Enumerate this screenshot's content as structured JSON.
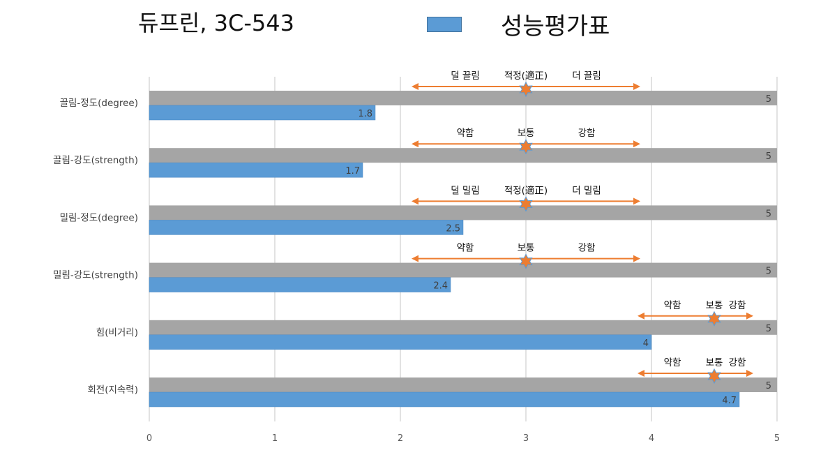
{
  "title": "듀프린, 3C-543",
  "legend": {
    "label": "성능평가표",
    "color": "#5b9bd5"
  },
  "colors": {
    "bar": "#5b9bd5",
    "max": "#a5a5a5",
    "arrow": "#ed7d31",
    "star": "#ed7d31",
    "star_stroke": "#5b9bd5",
    "grid": "#d9d9d9"
  },
  "chart_data": {
    "type": "bar",
    "orientation": "horizontal",
    "xlim": [
      0,
      5
    ],
    "xticks": [
      "0",
      "1",
      "2",
      "3",
      "4",
      "5"
    ],
    "grid": true,
    "categories": [
      "끌림-정도(degree)",
      "끌림-강도(strength)",
      "밀림-정도(degree)",
      "밀림-강도(strength)",
      "힘(비거리)",
      "회전(지속력)"
    ],
    "series": [
      {
        "values": [
          5,
          5,
          5,
          5,
          5,
          5
        ]
      },
      {
        "values": [
          1.8,
          1.7,
          2.5,
          2.4,
          4,
          4.7
        ]
      }
    ],
    "data_labels": {
      "max": [
        "5",
        "5",
        "5",
        "5",
        "5",
        "5"
      ],
      "value": [
        "1.8",
        "1.7",
        "2.5",
        "2.4",
        "4",
        "4.7"
      ]
    },
    "scales": [
      {
        "left": "덜 끌림",
        "mid": "적정(適正)",
        "right": "더 끌림",
        "from": 2.1,
        "to": 3.9,
        "marker": 3
      },
      {
        "left": "약함",
        "mid": "보통",
        "right": "강함",
        "from": 2.1,
        "to": 3.9,
        "marker": 3
      },
      {
        "left": "덜 밀림",
        "mid": "적정(適正)",
        "right": "더 밀림",
        "from": 2.1,
        "to": 3.9,
        "marker": 3
      },
      {
        "left": "약함",
        "mid": "보통",
        "right": "강함",
        "from": 2.1,
        "to": 3.9,
        "marker": 3
      },
      {
        "left": "약함",
        "mid": "보통",
        "right": "강함",
        "from": 3.9,
        "to": 4.8,
        "marker": 4.5
      },
      {
        "left": "약함",
        "mid": "보통",
        "right": "강함",
        "from": 3.9,
        "to": 4.8,
        "marker": 4.5
      }
    ]
  }
}
